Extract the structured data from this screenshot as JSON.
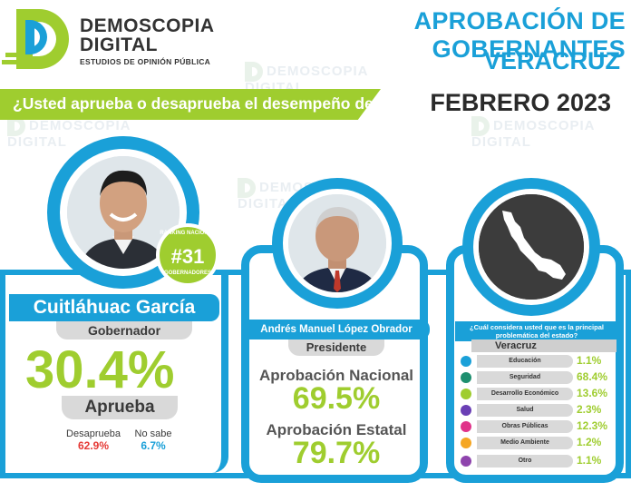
{
  "brand": {
    "name_line1": "DEMOSCOPIA",
    "name_line2": "DIGITAL",
    "tagline": "ESTUDIOS DE OPINIÓN PÚBLICA"
  },
  "header": {
    "title": "APROBACIÓN DE GOBERNANTES",
    "state": "VERACRUZ",
    "question": "¿Usted aprueba o desaprueba el desempeño de?",
    "date": "FEBRERO 2023"
  },
  "governor": {
    "name": "Cuitláhuac García",
    "role": "Gobernador",
    "approval": "30.4%",
    "approval_label": "Aprueba",
    "disapprove_label": "Desaprueba",
    "disapprove_value": "62.9%",
    "dont_know_label": "No sabe",
    "dont_know_value": "6.7%",
    "ranking_top": "RANKING NACIONAL",
    "ranking_value": "#31",
    "ranking_bottom": "GOBERNADORES"
  },
  "president": {
    "name": "Andrés Manuel López Obrador",
    "role": "Presidente",
    "national_label": "Aprobación Nacional",
    "national_value": "69.5%",
    "state_label": "Aprobación Estatal",
    "state_value": "79.7%"
  },
  "problems": {
    "question": "¿Cuál considera usted que es la principal problemática del estado?",
    "header": "Veracruz",
    "items": [
      {
        "label": "Educación",
        "value": "1.1%",
        "icon": "education-icon",
        "color": "#1aa0d8"
      },
      {
        "label": "Seguridad",
        "value": "68.4%",
        "icon": "security-icon",
        "color": "#1e8f6f"
      },
      {
        "label": "Desarrollo Económico",
        "value": "13.6%",
        "icon": "economy-icon",
        "color": "#9fcd2f"
      },
      {
        "label": "Salud",
        "value": "2.3%",
        "icon": "health-icon",
        "color": "#6a3fb5"
      },
      {
        "label": "Obras Públicas",
        "value": "12.3%",
        "icon": "public-works-icon",
        "color": "#e0338a"
      },
      {
        "label": "Medio Ambiente",
        "value": "1.2%",
        "icon": "environment-icon",
        "color": "#f5a623"
      },
      {
        "label": "Otro",
        "value": "1.1%",
        "icon": "other-icon",
        "color": "#8e44ad"
      }
    ]
  }
}
